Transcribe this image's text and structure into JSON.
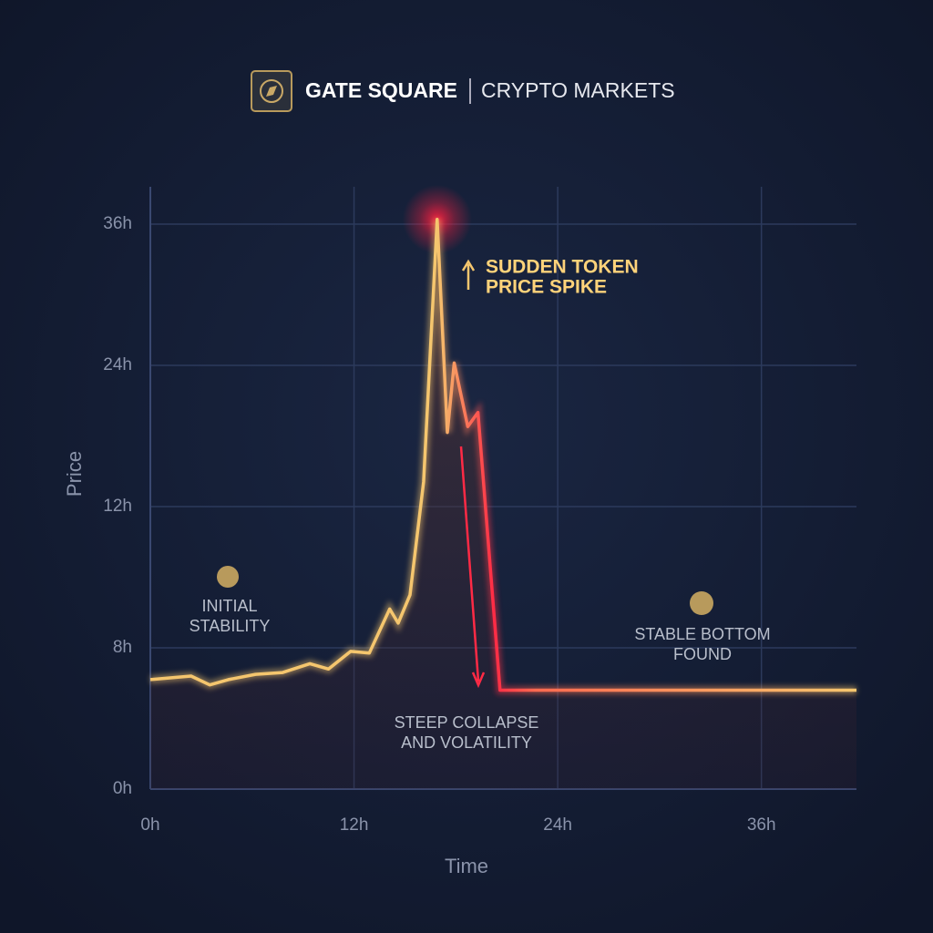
{
  "chart_data": {
    "type": "line",
    "brand": "GATE SQUARE",
    "title": "CRYPTO MARKETS",
    "xlabel": "Time",
    "ylabel": "Price",
    "x": [
      0,
      2.4,
      3.5,
      4.6,
      6.2,
      7.8,
      9.4,
      10.5,
      11.8,
      12.9,
      14.1,
      14.6,
      15.3,
      16.1,
      16.9,
      17.5,
      17.9,
      18.7,
      19.3,
      20.6,
      41.6
    ],
    "series": [
      {
        "name": "Price",
        "color": "#f5c66e",
        "values": [
          6.2,
          6.4,
          5.9,
          6.2,
          6.5,
          6.6,
          7.1,
          6.8,
          7.8,
          7.7,
          9.1,
          8.7,
          9.5,
          14.1,
          36.4,
          18.3,
          24.2,
          18.8,
          20.0,
          5.6,
          5.6
        ]
      }
    ],
    "xlim": [
      0,
      41.6
    ],
    "xticks": [
      {
        "value": 0,
        "label": "0h"
      },
      {
        "value": 12,
        "label": "12h"
      },
      {
        "value": 24,
        "label": "24h"
      },
      {
        "value": 36,
        "label": "36h"
      }
    ],
    "ylim": [
      0,
      39
    ],
    "yticks": [
      {
        "value": 0,
        "label": "0h"
      },
      {
        "value": 8,
        "label": "8h"
      },
      {
        "value": 12,
        "label": "12h"
      },
      {
        "value": 24,
        "label": "24h"
      },
      {
        "value": 36,
        "label": "36h"
      }
    ],
    "grid": true,
    "annotations": [
      {
        "lines": [
          "SUDDEN TOKEN",
          "PRICE SPIKE"
        ]
      },
      {
        "lines": [
          "INITIAL",
          "STABILITY"
        ]
      },
      {
        "lines": [
          "STEEP COLLAPSE",
          "AND VOLATILITY"
        ]
      },
      {
        "lines": [
          "STABLE BOTTOM",
          "FOUND"
        ]
      }
    ]
  }
}
